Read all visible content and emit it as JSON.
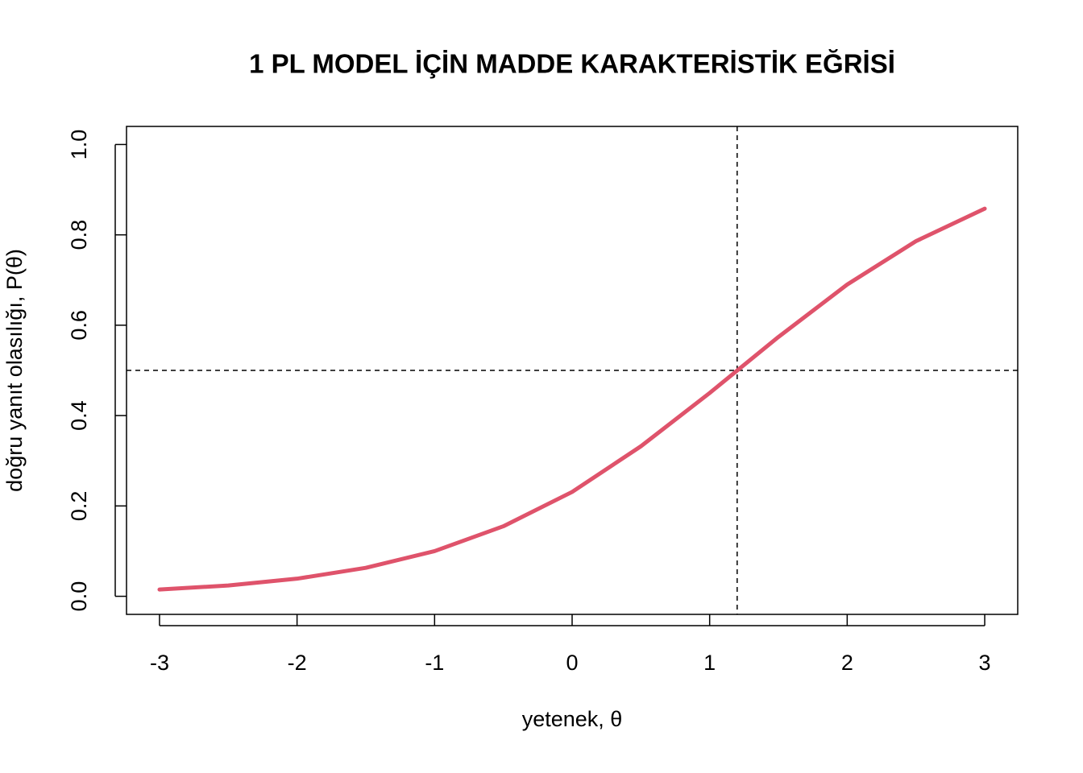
{
  "chart_data": {
    "type": "line",
    "title": "1 PL MODEL İÇİN MADDE KARAKTERİSTİK EĞRİSİ",
    "x_label": "yetenek, θ",
    "y_label": "doğru yanıt olasılığı, P(θ)",
    "x": [
      -3,
      -2.5,
      -2,
      -1.5,
      -1,
      -0.5,
      0,
      0.5,
      1,
      1.5,
      2,
      2.5,
      3
    ],
    "series": [
      {
        "color": "#DF536B",
        "values": [
          0.015,
          0.024,
          0.039,
          0.063,
          0.1,
          0.155,
          0.231,
          0.332,
          0.45,
          0.574,
          0.69,
          0.786,
          0.858
        ]
      }
    ],
    "xlim": [
      -3.24,
      3.24
    ],
    "ylim": [
      -0.04,
      1.04
    ],
    "xticks": [
      -3,
      -2,
      -1,
      0,
      1,
      2,
      3
    ],
    "yticks": [
      {
        "value": 0,
        "label": "0.0"
      },
      {
        "value": 0.2,
        "label": "0.2"
      },
      {
        "value": 0.4,
        "label": "0.4"
      },
      {
        "value": 0.6,
        "label": "0.6"
      },
      {
        "value": 0.8,
        "label": "0.8"
      },
      {
        "value": 1,
        "label": "1.0"
      }
    ],
    "vline": 1.2,
    "hline": 0.5
  }
}
